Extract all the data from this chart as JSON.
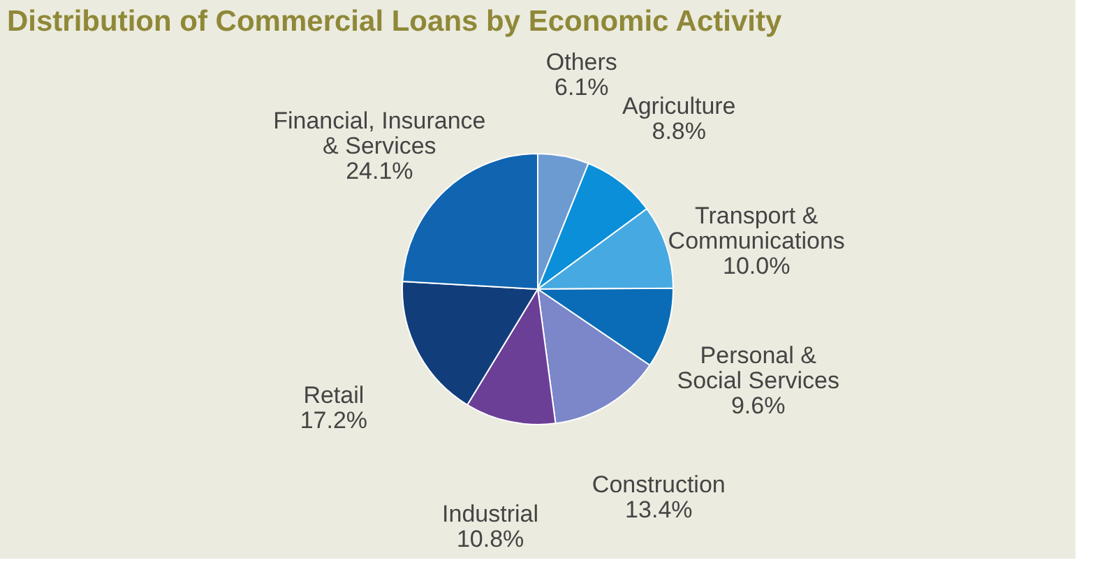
{
  "chart_data": {
    "type": "pie",
    "title": "Distribution of Commercial Loans by Economic Activity",
    "categories": [
      "Others",
      "Agriculture",
      "Transport & Communications",
      "Personal & Social Services",
      "Construction",
      "Industrial",
      "Retail",
      "Financial, Insurance & Services"
    ],
    "values": [
      6.1,
      8.8,
      10.0,
      9.6,
      13.4,
      10.8,
      17.2,
      24.1
    ],
    "colors": [
      "#6c9bd2",
      "#0b8fd9",
      "#47a9e1",
      "#0a6cb6",
      "#7b87c9",
      "#6c3f97",
      "#113e7b",
      "#1064b0"
    ],
    "value_labels": [
      "6.1%",
      "8.8%",
      "10.0%",
      "9.6%",
      "13.4%",
      "10.8%",
      "17.2%",
      "24.1%"
    ],
    "legend": false
  }
}
